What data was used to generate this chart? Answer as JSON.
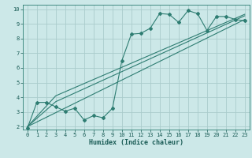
{
  "title": "",
  "xlabel": "Humidex (Indice chaleur)",
  "bg_color": "#cce8e8",
  "grid_color": "#aacccc",
  "line_color": "#2e7d72",
  "xlim": [
    -0.5,
    23.5
  ],
  "ylim": [
    1.8,
    10.3
  ],
  "xticks": [
    0,
    1,
    2,
    3,
    4,
    5,
    6,
    7,
    8,
    9,
    10,
    11,
    12,
    13,
    14,
    15,
    16,
    17,
    18,
    19,
    20,
    21,
    22,
    23
  ],
  "yticks": [
    2,
    3,
    4,
    5,
    6,
    7,
    8,
    9,
    10
  ],
  "line1_x": [
    0,
    1,
    2,
    3,
    4,
    5,
    6,
    7,
    8,
    9,
    10,
    11,
    12,
    13,
    14,
    15,
    16,
    17,
    18,
    19,
    20,
    21,
    22,
    23
  ],
  "line1_y": [
    1.9,
    3.65,
    3.65,
    3.35,
    3.05,
    3.25,
    2.45,
    2.75,
    2.6,
    3.25,
    6.5,
    8.3,
    8.35,
    8.7,
    9.7,
    9.65,
    9.1,
    9.9,
    9.7,
    8.55,
    9.5,
    9.5,
    9.3,
    9.2
  ],
  "line2_x": [
    0,
    3,
    23
  ],
  "line2_y": [
    2.0,
    3.7,
    9.55
  ],
  "line3_x": [
    0,
    3,
    23
  ],
  "line3_y": [
    2.0,
    4.1,
    9.65
  ],
  "line4_x": [
    0,
    23
  ],
  "line4_y": [
    2.0,
    9.3
  ]
}
